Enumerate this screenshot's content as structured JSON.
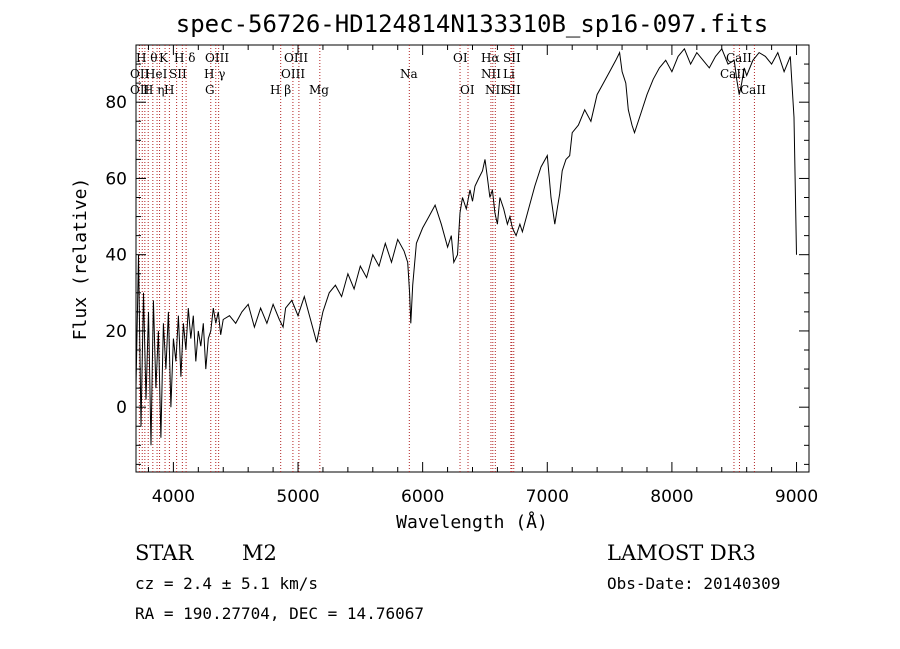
{
  "chart_data": {
    "type": "line",
    "title": "spec-56726-HD124814N133310B_sp16-097.fits",
    "xlabel": "Wavelength (Å)",
    "ylabel": "Flux (relative)",
    "xlim": [
      3700,
      9100
    ],
    "ylim": [
      -17,
      95
    ],
    "xticks": [
      4000,
      5000,
      6000,
      7000,
      8000,
      9000
    ],
    "yticks": [
      0,
      20,
      40,
      60,
      80
    ],
    "series": [
      {
        "name": "flux",
        "x": [
          3700,
          3720,
          3740,
          3760,
          3780,
          3800,
          3820,
          3840,
          3860,
          3880,
          3900,
          3920,
          3940,
          3960,
          3980,
          4000,
          4020,
          4040,
          4060,
          4080,
          4100,
          4120,
          4140,
          4160,
          4180,
          4200,
          4220,
          4240,
          4260,
          4280,
          4300,
          4320,
          4340,
          4360,
          4380,
          4400,
          4450,
          4500,
          4550,
          4600,
          4650,
          4700,
          4750,
          4800,
          4850,
          4880,
          4900,
          4950,
          5000,
          5050,
          5100,
          5150,
          5180,
          5200,
          5250,
          5300,
          5350,
          5400,
          5450,
          5500,
          5550,
          5600,
          5650,
          5700,
          5750,
          5800,
          5850,
          5880,
          5895,
          5905,
          5920,
          5950,
          6000,
          6050,
          6100,
          6150,
          6200,
          6230,
          6250,
          6280,
          6300,
          6320,
          6350,
          6380,
          6400,
          6420,
          6450,
          6480,
          6500,
          6520,
          6540,
          6560,
          6580,
          6600,
          6620,
          6650,
          6680,
          6700,
          6720,
          6750,
          6780,
          6800,
          6850,
          6900,
          6950,
          7000,
          7030,
          7060,
          7080,
          7100,
          7120,
          7150,
          7180,
          7200,
          7250,
          7300,
          7350,
          7400,
          7450,
          7500,
          7550,
          7580,
          7600,
          7630,
          7650,
          7680,
          7700,
          7750,
          7800,
          7850,
          7900,
          7950,
          8000,
          8050,
          8100,
          8150,
          8200,
          8250,
          8300,
          8350,
          8400,
          8450,
          8500,
          8520,
          8540,
          8560,
          8580,
          8600,
          8650,
          8700,
          8750,
          8800,
          8850,
          8900,
          8950,
          8980,
          9000
        ],
        "values": [
          5,
          40,
          -5,
          30,
          2,
          25,
          -10,
          28,
          5,
          20,
          -8,
          22,
          10,
          25,
          0,
          18,
          12,
          24,
          8,
          22,
          15,
          26,
          18,
          24,
          12,
          20,
          16,
          22,
          10,
          18,
          20,
          26,
          22,
          25,
          19,
          23,
          24,
          22,
          25,
          27,
          21,
          26,
          22,
          27,
          23,
          21,
          26,
          28,
          24,
          29,
          23,
          17,
          22,
          25,
          30,
          32,
          29,
          35,
          31,
          37,
          34,
          40,
          37,
          43,
          38,
          44,
          41,
          38,
          30,
          22,
          32,
          43,
          47,
          50,
          53,
          48,
          42,
          45,
          38,
          40,
          51,
          55,
          52,
          57,
          54,
          58,
          60,
          62,
          65,
          60,
          55,
          57,
          51,
          48,
          55,
          52,
          48,
          50,
          47,
          45,
          48,
          46,
          52,
          58,
          63,
          66,
          55,
          48,
          52,
          56,
          62,
          65,
          66,
          72,
          74,
          78,
          75,
          82,
          85,
          88,
          91,
          93,
          88,
          85,
          78,
          74,
          72,
          77,
          82,
          86,
          89,
          91,
          88,
          92,
          94,
          90,
          93,
          91,
          89,
          92,
          94,
          90,
          91,
          86,
          82,
          85,
          89,
          87,
          91,
          93,
          92,
          90,
          93,
          88,
          92,
          76,
          40
        ]
      }
    ],
    "lines": {
      "top_row1": [
        "H θ",
        "K",
        "H δ",
        "OIII",
        "OIII",
        "OI",
        "Hα",
        "SII",
        "CaII"
      ],
      "top_row2": [
        "OII",
        "HeI",
        "SII",
        "H γ",
        "OIII",
        "NII",
        "Li",
        "CaII"
      ],
      "top_row3": [
        "OII",
        "H η",
        "H",
        "G",
        "H β",
        "Mg",
        "Na",
        "OI",
        "NII",
        "SII",
        "CaII"
      ]
    },
    "footer": {
      "object": "STAR",
      "subclass": "M2",
      "survey": "LAMOST DR3",
      "cz": "cz = 2.4 ± 5.1 km/s",
      "obs_date": "Obs-Date: 20140309",
      "coords": "RA = 190.27704, DEC =  14.76067"
    }
  }
}
